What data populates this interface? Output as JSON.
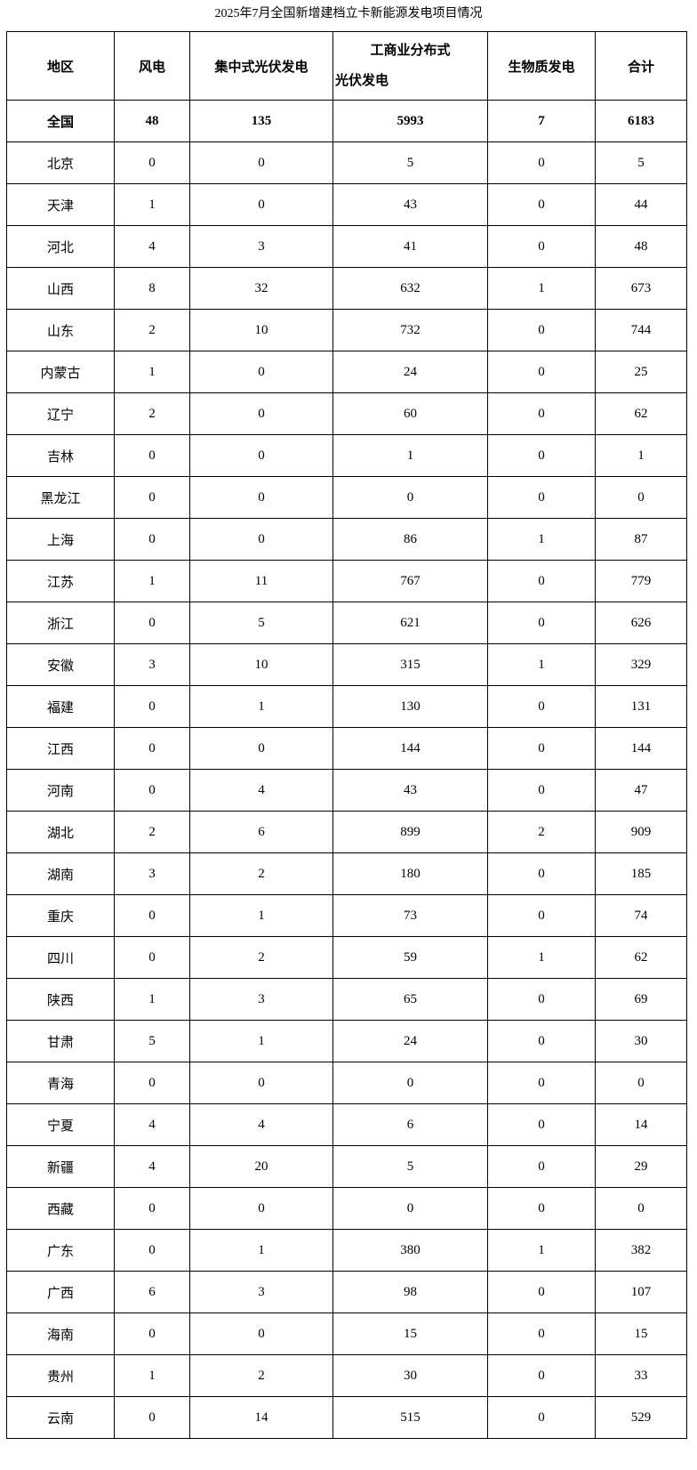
{
  "title": "2025年7月全国新增建档立卡新能源发电项目情况",
  "table": {
    "headers": {
      "region": "地区",
      "wind": "风电",
      "centralized_pv": "集中式光伏发电",
      "commercial_pv_line1": "工商业分布式",
      "commercial_pv_line2": "光伏发电",
      "biomass": "生物质发电",
      "total": "合计"
    },
    "rows": [
      {
        "bold": true,
        "cells": [
          "全国",
          "48",
          "135",
          "5993",
          "7",
          "6183"
        ]
      },
      {
        "bold": false,
        "cells": [
          "北京",
          "0",
          "0",
          "5",
          "0",
          "5"
        ]
      },
      {
        "bold": false,
        "cells": [
          "天津",
          "1",
          "0",
          "43",
          "0",
          "44"
        ]
      },
      {
        "bold": false,
        "cells": [
          "河北",
          "4",
          "3",
          "41",
          "0",
          "48"
        ]
      },
      {
        "bold": false,
        "cells": [
          "山西",
          "8",
          "32",
          "632",
          "1",
          "673"
        ]
      },
      {
        "bold": false,
        "cells": [
          "山东",
          "2",
          "10",
          "732",
          "0",
          "744"
        ]
      },
      {
        "bold": false,
        "cells": [
          "内蒙古",
          "1",
          "0",
          "24",
          "0",
          "25"
        ]
      },
      {
        "bold": false,
        "cells": [
          "辽宁",
          "2",
          "0",
          "60",
          "0",
          "62"
        ]
      },
      {
        "bold": false,
        "cells": [
          "吉林",
          "0",
          "0",
          "1",
          "0",
          "1"
        ]
      },
      {
        "bold": false,
        "cells": [
          "黑龙江",
          "0",
          "0",
          "0",
          "0",
          "0"
        ]
      },
      {
        "bold": false,
        "cells": [
          "上海",
          "0",
          "0",
          "86",
          "1",
          "87"
        ]
      },
      {
        "bold": false,
        "cells": [
          "江苏",
          "1",
          "11",
          "767",
          "0",
          "779"
        ]
      },
      {
        "bold": false,
        "cells": [
          "浙江",
          "0",
          "5",
          "621",
          "0",
          "626"
        ]
      },
      {
        "bold": false,
        "cells": [
          "安徽",
          "3",
          "10",
          "315",
          "1",
          "329"
        ]
      },
      {
        "bold": false,
        "cells": [
          "福建",
          "0",
          "1",
          "130",
          "0",
          "131"
        ]
      },
      {
        "bold": false,
        "cells": [
          "江西",
          "0",
          "0",
          "144",
          "0",
          "144"
        ]
      },
      {
        "bold": false,
        "cells": [
          "河南",
          "0",
          "4",
          "43",
          "0",
          "47"
        ]
      },
      {
        "bold": false,
        "cells": [
          "湖北",
          "2",
          "6",
          "899",
          "2",
          "909"
        ]
      },
      {
        "bold": false,
        "cells": [
          "湖南",
          "3",
          "2",
          "180",
          "0",
          "185"
        ]
      },
      {
        "bold": false,
        "cells": [
          "重庆",
          "0",
          "1",
          "73",
          "0",
          "74"
        ]
      },
      {
        "bold": false,
        "cells": [
          "四川",
          "0",
          "2",
          "59",
          "1",
          "62"
        ]
      },
      {
        "bold": false,
        "cells": [
          "陕西",
          "1",
          "3",
          "65",
          "0",
          "69"
        ]
      },
      {
        "bold": false,
        "cells": [
          "甘肃",
          "5",
          "1",
          "24",
          "0",
          "30"
        ]
      },
      {
        "bold": false,
        "cells": [
          "青海",
          "0",
          "0",
          "0",
          "0",
          "0"
        ]
      },
      {
        "bold": false,
        "cells": [
          "宁夏",
          "4",
          "4",
          "6",
          "0",
          "14"
        ]
      },
      {
        "bold": false,
        "cells": [
          "新疆",
          "4",
          "20",
          "5",
          "0",
          "29"
        ]
      },
      {
        "bold": false,
        "cells": [
          "西藏",
          "0",
          "0",
          "0",
          "0",
          "0"
        ]
      },
      {
        "bold": false,
        "cells": [
          "广东",
          "0",
          "1",
          "380",
          "1",
          "382"
        ]
      },
      {
        "bold": false,
        "cells": [
          "广西",
          "6",
          "3",
          "98",
          "0",
          "107"
        ]
      },
      {
        "bold": false,
        "cells": [
          "海南",
          "0",
          "0",
          "15",
          "0",
          "15"
        ]
      },
      {
        "bold": false,
        "cells": [
          "贵州",
          "1",
          "2",
          "30",
          "0",
          "33"
        ]
      },
      {
        "bold": false,
        "cells": [
          "云南",
          "0",
          "14",
          "515",
          "0",
          "529"
        ]
      }
    ]
  }
}
